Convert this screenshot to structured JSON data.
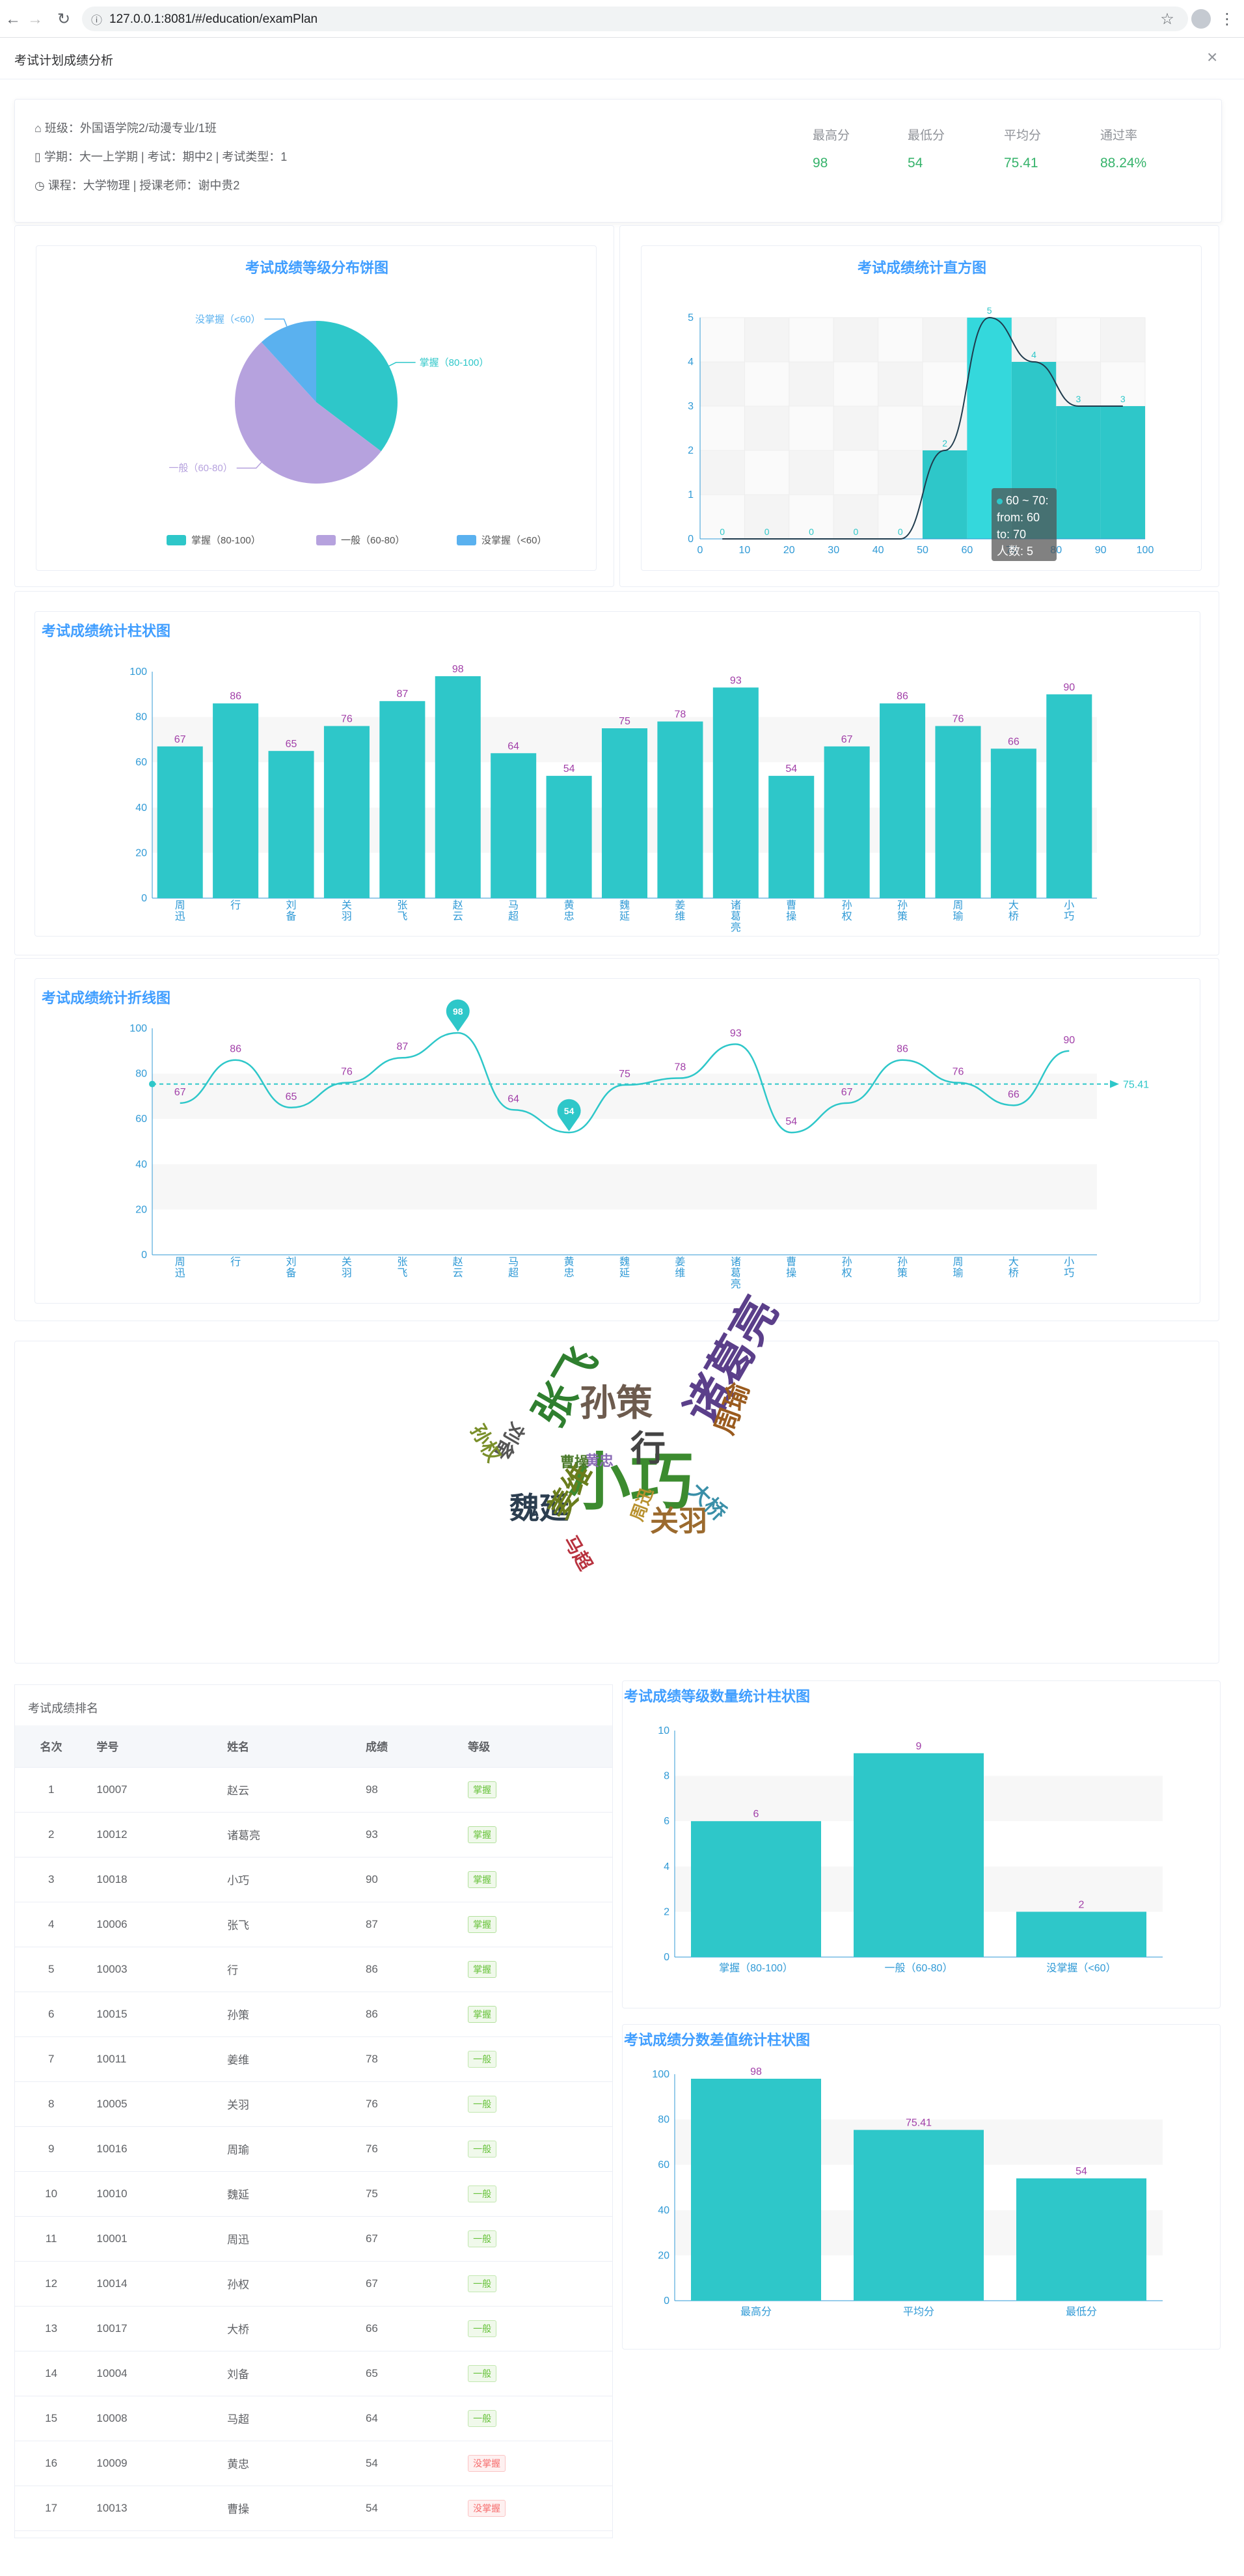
{
  "browser": {
    "url": "127.0.0.1:8081/#/education/examPlan"
  },
  "page": {
    "title": "考试计划成绩分析",
    "close": "×"
  },
  "info": {
    "class_label": "班级：外国语学院2/动漫专业/1班",
    "term_label": "学期：大一上学期 | 考试：期中2 | 考试类型：1",
    "course_label": "课程：大学物理 | 授课老师：谢中贵2"
  },
  "stats": [
    {
      "label": "最高分",
      "value": "98"
    },
    {
      "label": "最低分",
      "value": "54"
    },
    {
      "label": "平均分",
      "value": "75.41"
    },
    {
      "label": "通过率",
      "value": "88.24%"
    }
  ],
  "titles": {
    "pie": "考试成绩等级分布饼图",
    "hist": "考试成绩统计直方图",
    "bar": "考试成绩统计柱状图",
    "line": "考试成绩统计折线图",
    "level": "考试成绩等级数量统计柱状图",
    "diff": "考试成绩分数差值统计柱状图",
    "rank": "考试成绩排名"
  },
  "tooltip": {
    "line1": "60 ~ 70:",
    "line2": "from: 60",
    "line3": "to: 70",
    "line4": "人数: 5"
  },
  "mean_label": "75.41",
  "table": {
    "headers": [
      "名次",
      "学号",
      "姓名",
      "成绩",
      "等级"
    ],
    "rows": [
      [
        "1",
        "10007",
        "赵云",
        "98",
        "掌握"
      ],
      [
        "2",
        "10012",
        "诸葛亮",
        "93",
        "掌握"
      ],
      [
        "3",
        "10018",
        "小巧",
        "90",
        "掌握"
      ],
      [
        "4",
        "10006",
        "张飞",
        "87",
        "掌握"
      ],
      [
        "5",
        "10003",
        "行",
        "86",
        "掌握"
      ],
      [
        "6",
        "10015",
        "孙策",
        "86",
        "掌握"
      ],
      [
        "7",
        "10011",
        "姜维",
        "78",
        "一般"
      ],
      [
        "8",
        "10005",
        "关羽",
        "76",
        "一般"
      ],
      [
        "9",
        "10016",
        "周瑜",
        "76",
        "一般"
      ],
      [
        "10",
        "10010",
        "魏延",
        "75",
        "一般"
      ],
      [
        "11",
        "10001",
        "周迅",
        "67",
        "一般"
      ],
      [
        "12",
        "10014",
        "孙权",
        "67",
        "一般"
      ],
      [
        "13",
        "10017",
        "大桥",
        "66",
        "一般"
      ],
      [
        "14",
        "10004",
        "刘备",
        "65",
        "一般"
      ],
      [
        "15",
        "10008",
        "马超",
        "64",
        "一般"
      ],
      [
        "16",
        "10009",
        "黄忠",
        "54",
        "没掌握"
      ],
      [
        "17",
        "10013",
        "曹操",
        "54",
        "没掌握"
      ]
    ]
  },
  "wordcloud": [
    {
      "t": "小巧",
      "c": "#3c8b2f"
    },
    {
      "t": "孙策",
      "c": "#6d5b4e"
    },
    {
      "t": "张飞",
      "c": "#2f7f2f"
    },
    {
      "t": "行",
      "c": "#444"
    },
    {
      "t": "诸葛亮",
      "c": "#5b3f8a"
    },
    {
      "t": "周瑜",
      "c": "#9a5b1e"
    },
    {
      "t": "魏延",
      "c": "#2c3e50"
    },
    {
      "t": "姜维",
      "c": "#6a7d1c"
    },
    {
      "t": "关羽",
      "c": "#9b6a2e"
    },
    {
      "t": "大桥",
      "c": "#3a8fa8"
    },
    {
      "t": "刘备",
      "c": "#555"
    },
    {
      "t": "孙权",
      "c": "#7a8f2a"
    },
    {
      "t": "马超",
      "c": "#b8323e"
    },
    {
      "t": "周迅",
      "c": "#b8912e"
    },
    {
      "t": "黄忠",
      "c": "#8a6bb5"
    },
    {
      "t": "曹操",
      "c": "#4b7a2b"
    }
  ],
  "chart_data": [
    {
      "type": "pie",
      "title": "考试成绩等级分布饼图",
      "categories": [
        "掌握（80-100）",
        "一般（60-80）",
        "没掌握（<60）"
      ],
      "values": [
        6,
        9,
        2
      ],
      "colors": [
        "#2ec7c9",
        "#b6a2de",
        "#5ab1ef"
      ],
      "legend": "bottom"
    },
    {
      "type": "bar",
      "title": "考试成绩统计直方图",
      "categories": [
        "0-10",
        "10-20",
        "20-30",
        "30-40",
        "40-50",
        "50-60",
        "60-70",
        "70-80",
        "80-90",
        "90-100"
      ],
      "values": [
        0,
        0,
        0,
        0,
        0,
        2,
        5,
        4,
        3,
        3
      ],
      "ylim": [
        0,
        5
      ],
      "x_ticks": [
        0,
        10,
        20,
        30,
        40,
        50,
        60,
        70,
        80,
        90,
        100
      ]
    },
    {
      "type": "bar",
      "title": "考试成绩统计柱状图",
      "categories": [
        "周迅",
        "行",
        "刘备",
        "关羽",
        "张飞",
        "赵云",
        "马超",
        "黄忠",
        "魏延",
        "姜维",
        "诸葛亮",
        "曹操",
        "孙权",
        "孙策",
        "周瑜",
        "大桥",
        "小巧"
      ],
      "values": [
        67,
        86,
        65,
        76,
        87,
        98,
        64,
        54,
        75,
        78,
        93,
        54,
        67,
        86,
        76,
        66,
        90
      ],
      "ylim": [
        0,
        100
      ]
    },
    {
      "type": "line",
      "title": "考试成绩统计折线图",
      "categories": [
        "周迅",
        "行",
        "刘备",
        "关羽",
        "张飞",
        "赵云",
        "马超",
        "黄忠",
        "魏延",
        "姜维",
        "诸葛亮",
        "曹操",
        "孙权",
        "孙策",
        "周瑜",
        "大桥",
        "小巧"
      ],
      "values": [
        67,
        86,
        65,
        76,
        87,
        98,
        64,
        54,
        75,
        78,
        93,
        54,
        67,
        86,
        76,
        66,
        90
      ],
      "ylim": [
        0,
        100
      ],
      "max_label": "98",
      "min_label": "54",
      "mean": 75.41
    },
    {
      "type": "bar",
      "title": "考试成绩等级数量统计柱状图",
      "categories": [
        "掌握（80-100）",
        "一般（60-80）",
        "没掌握（<60）"
      ],
      "values": [
        6,
        9,
        2
      ],
      "ylim": [
        0,
        10
      ]
    },
    {
      "type": "bar",
      "title": "考试成绩分数差值统计柱状图",
      "categories": [
        "最高分",
        "平均分",
        "最低分"
      ],
      "values": [
        98,
        75.41,
        54
      ],
      "ylim": [
        0,
        100
      ]
    }
  ]
}
